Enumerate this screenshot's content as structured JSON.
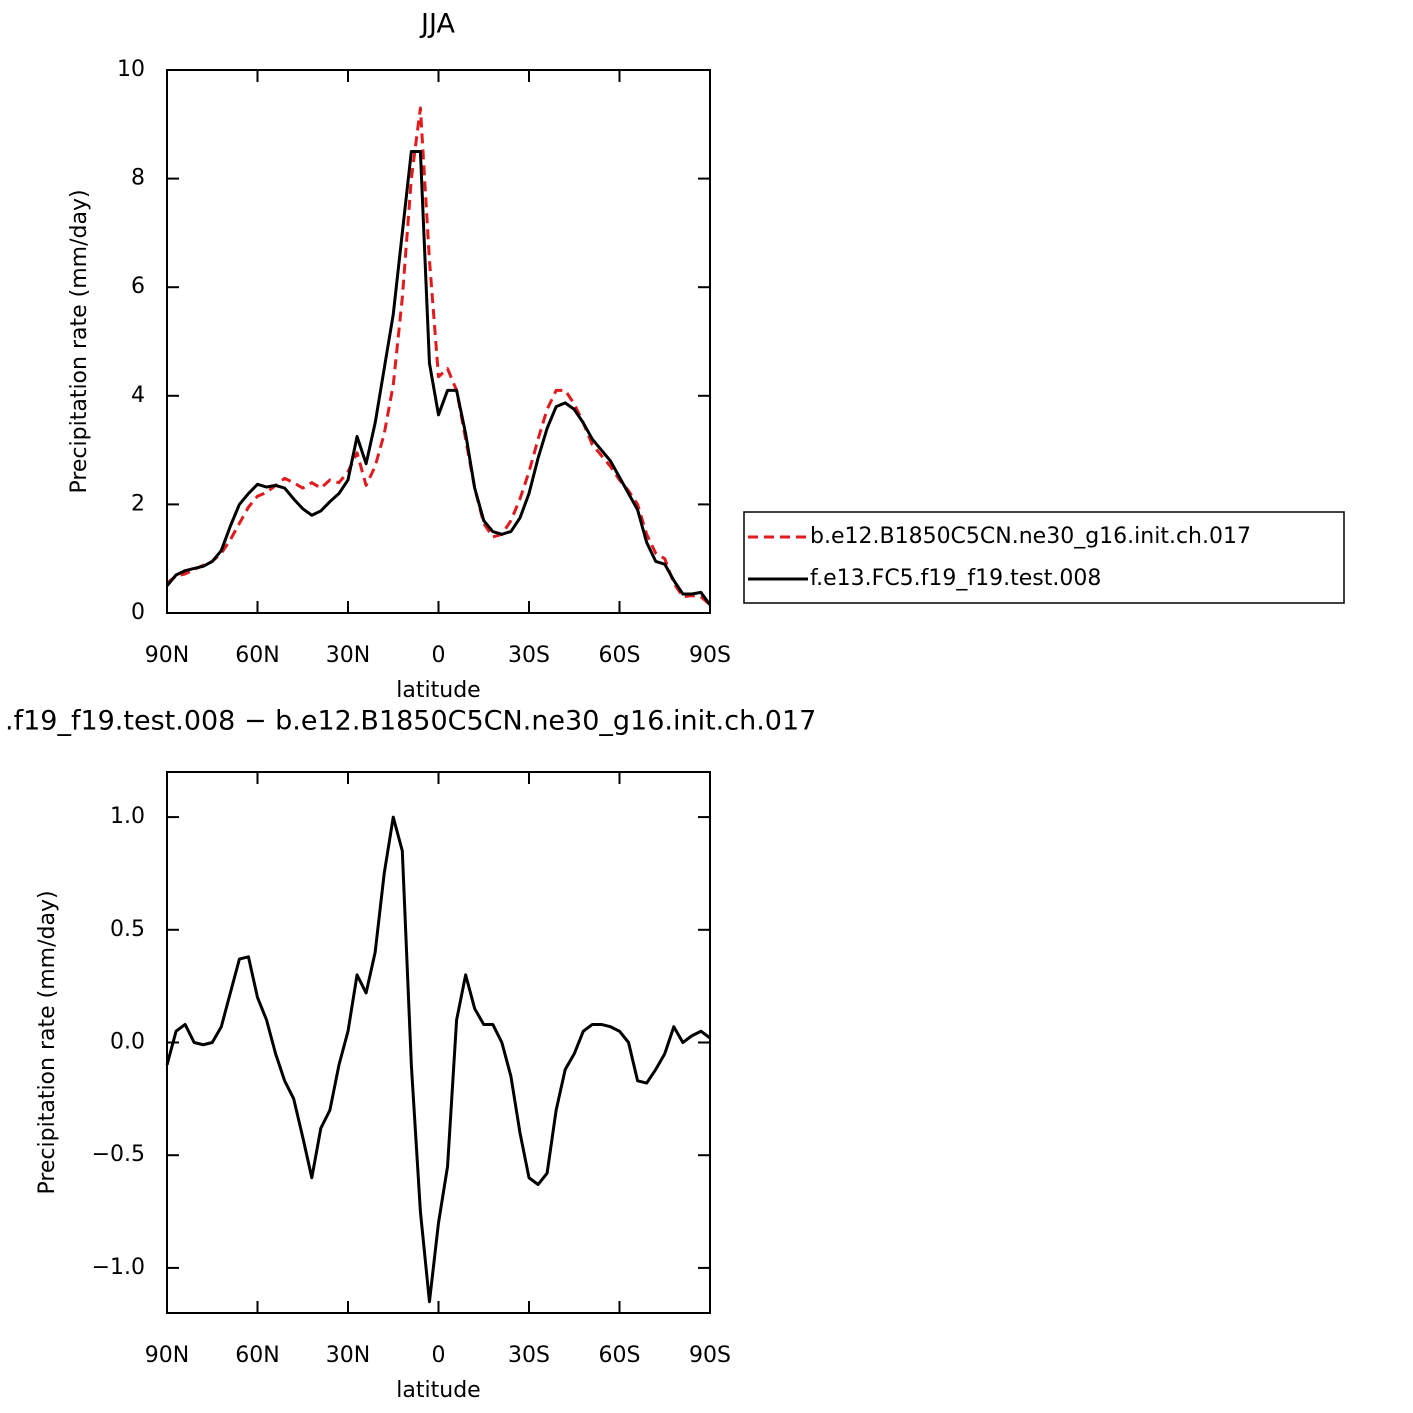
{
  "chart_data": [
    {
      "type": "line",
      "title": "JJA",
      "xlabel": "latitude",
      "ylabel": "Precipitation rate (mm/day)",
      "x": [
        90,
        87,
        84,
        81,
        78,
        75,
        72,
        69,
        66,
        63,
        60,
        57,
        54,
        51,
        48,
        45,
        42,
        39,
        36,
        33,
        30,
        27,
        24,
        21,
        18,
        15,
        12,
        9,
        6,
        3,
        0,
        -3,
        -6,
        -9,
        -12,
        -15,
        -18,
        -21,
        -24,
        -27,
        -30,
        -33,
        -36,
        -39,
        -42,
        -45,
        -48,
        -51,
        -54,
        -57,
        -60,
        -63,
        -66,
        -69,
        -72,
        -75,
        -78,
        -81,
        -84,
        -87,
        -90
      ],
      "series": [
        {
          "name": "b.e12.B1850C5CN.ne30_g16.init.ch.017",
          "color": "#e31a1c",
          "dash": true,
          "values": [
            0.55,
            0.68,
            0.72,
            0.8,
            0.88,
            0.95,
            1.1,
            1.35,
            1.65,
            1.95,
            2.15,
            2.22,
            2.35,
            2.48,
            2.4,
            2.3,
            2.4,
            2.3,
            2.45,
            2.4,
            2.6,
            2.95,
            2.35,
            2.7,
            3.3,
            4.2,
            5.8,
            8.0,
            9.3,
            6.5,
            4.35,
            4.5,
            4.1,
            3.2,
            2.3,
            1.65,
            1.4,
            1.45,
            1.7,
            2.1,
            2.6,
            3.2,
            3.75,
            4.1,
            4.1,
            3.85,
            3.5,
            3.1,
            2.9,
            2.7,
            2.45,
            2.25,
            2.0,
            1.45,
            1.1,
            1.0,
            0.55,
            0.3,
            0.32,
            0.3,
            0.15
          ]
        },
        {
          "name": "f.e13.FC5.f19_f19.test.008",
          "color": "#000000",
          "dash": false,
          "values": [
            0.5,
            0.7,
            0.78,
            0.82,
            0.86,
            0.95,
            1.15,
            1.6,
            2.0,
            2.2,
            2.37,
            2.32,
            2.35,
            2.3,
            2.1,
            1.92,
            1.8,
            1.88,
            2.05,
            2.2,
            2.45,
            3.25,
            2.75,
            3.5,
            4.5,
            5.5,
            7.0,
            8.5,
            8.5,
            4.6,
            3.65,
            4.1,
            4.1,
            3.3,
            2.3,
            1.7,
            1.5,
            1.45,
            1.5,
            1.75,
            2.2,
            2.85,
            3.4,
            3.8,
            3.87,
            3.75,
            3.5,
            3.2,
            3.0,
            2.8,
            2.5,
            2.2,
            1.9,
            1.3,
            0.95,
            0.9,
            0.6,
            0.35,
            0.35,
            0.38,
            0.15
          ]
        }
      ],
      "xlim": [
        90,
        -90
      ],
      "xticks": [
        {
          "value": 90,
          "label": "90N"
        },
        {
          "value": 60,
          "label": "60N"
        },
        {
          "value": 30,
          "label": "30N"
        },
        0,
        {
          "value": -30,
          "label": "30S"
        },
        {
          "value": -60,
          "label": "60S"
        },
        {
          "value": -90,
          "label": "90S"
        }
      ],
      "ylim": [
        0,
        10
      ],
      "yticks": [
        0,
        2,
        4,
        6,
        8,
        10
      ],
      "legend": "right"
    },
    {
      "type": "line",
      "title": ".f19_f19.test.008 − b.e12.B1850C5CN.ne30_g16.init.ch.017",
      "xlabel": "latitude",
      "ylabel": "Precipitation rate (mm/day)",
      "x": [
        90,
        87,
        84,
        81,
        78,
        75,
        72,
        69,
        66,
        63,
        60,
        57,
        54,
        51,
        48,
        45,
        42,
        39,
        36,
        33,
        30,
        27,
        24,
        21,
        18,
        15,
        12,
        9,
        6,
        3,
        0,
        -3,
        -6,
        -9,
        -12,
        -15,
        -18,
        -21,
        -24,
        -27,
        -30,
        -33,
        -36,
        -39,
        -42,
        -45,
        -48,
        -51,
        -54,
        -57,
        -60,
        -63,
        -66,
        -69,
        -72,
        -75,
        -78,
        -81,
        -84,
        -87,
        -90
      ],
      "series": [
        {
          "color": "#000000",
          "dash": false,
          "values": [
            -0.1,
            0.05,
            0.08,
            0.0,
            -0.01,
            0.0,
            0.07,
            0.22,
            0.37,
            0.38,
            0.2,
            0.1,
            -0.05,
            -0.17,
            -0.25,
            -0.42,
            -0.6,
            -0.38,
            -0.3,
            -0.1,
            0.05,
            0.3,
            0.22,
            0.4,
            0.75,
            1.0,
            0.85,
            -0.1,
            -0.75,
            -1.15,
            -0.8,
            -0.55,
            0.1,
            0.3,
            0.15,
            0.08,
            0.08,
            0.0,
            -0.15,
            -0.4,
            -0.6,
            -0.63,
            -0.58,
            -0.3,
            -0.12,
            -0.05,
            0.05,
            0.08,
            0.08,
            0.07,
            0.05,
            0.0,
            -0.17,
            -0.18,
            -0.12,
            -0.05,
            0.07,
            0.0,
            0.03,
            0.05,
            0.02
          ]
        }
      ],
      "xlim": [
        90,
        -90
      ],
      "xticks": [
        {
          "value": 90,
          "label": "90N"
        },
        {
          "value": 60,
          "label": "60N"
        },
        {
          "value": 30,
          "label": "30N"
        },
        0,
        {
          "value": -30,
          "label": "30S"
        },
        {
          "value": -60,
          "label": "60S"
        },
        {
          "value": -90,
          "label": "90S"
        }
      ],
      "ylim": [
        -1.2,
        1.2
      ],
      "yticks": [
        {
          "value": -1.0,
          "label": "−1.0"
        },
        {
          "value": -0.5,
          "label": "−0.5"
        },
        {
          "value": 0.0,
          "label": "0.0"
        },
        {
          "value": 0.5,
          "label": "0.5"
        },
        {
          "value": 1.0,
          "label": "1.0"
        }
      ]
    }
  ]
}
